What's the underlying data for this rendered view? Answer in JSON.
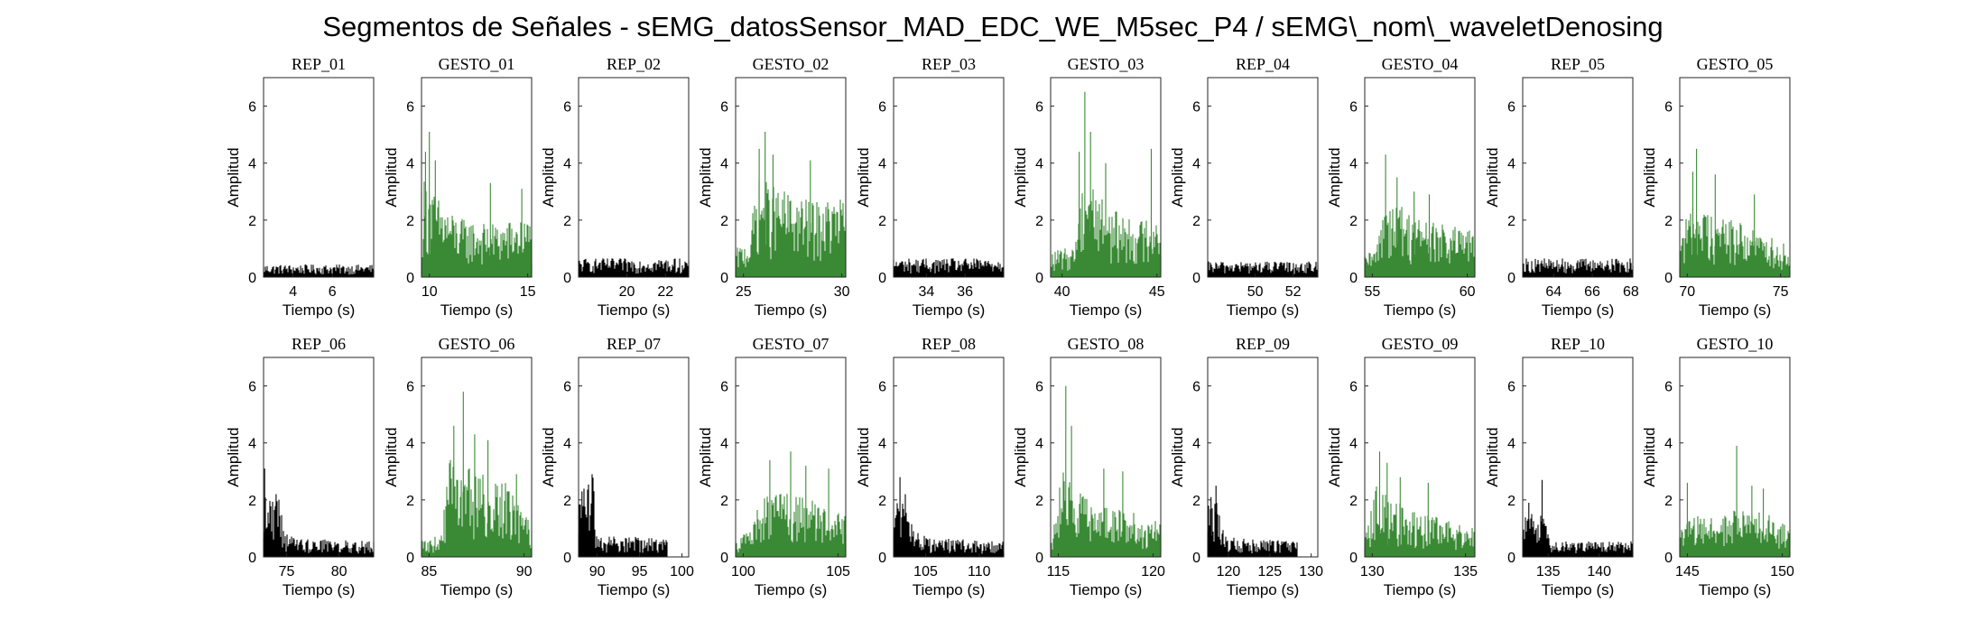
{
  "figure": {
    "title": "Segmentos de Señales - sEMG_datosSensor_MAD_EDC_WE_M5sec_P4 / sEMG\\_nom\\_waveletDenosing"
  },
  "colors": {
    "rep": "#000000",
    "gesto": "#3a8a35",
    "axis": "#262626"
  },
  "chart_data": [
    {
      "type": "area",
      "title": "REP_01",
      "kind": "rep",
      "xlabel": "Tiempo (s)",
      "ylabel": "Amplitud",
      "xlim": [
        2.5,
        8.1
      ],
      "ylim": [
        0,
        7
      ],
      "xticks": [
        4,
        6
      ],
      "yticks": [
        0,
        2,
        4,
        6
      ],
      "x_range": [
        2.5,
        8.1
      ],
      "envelope_x": [
        2.5,
        8.1
      ],
      "envelope_y": [
        0.4,
        0.4
      ],
      "spikes": []
    },
    {
      "type": "area",
      "title": "GESTO_01",
      "kind": "gesto",
      "xlabel": "Tiempo (s)",
      "ylabel": "Amplitud",
      "xlim": [
        9.6,
        15.2
      ],
      "ylim": [
        0,
        7
      ],
      "xticks": [
        10,
        15
      ],
      "yticks": [
        0,
        2,
        4,
        6
      ],
      "x_range": [
        9.6,
        15.2
      ],
      "envelope_x": [
        9.6,
        10.5,
        11.5,
        13,
        15.2
      ],
      "envelope_y": [
        3.3,
        2.5,
        1.9,
        1.7,
        1.9
      ],
      "spikes": [
        [
          10,
          5.1
        ],
        [
          9.8,
          4.4
        ],
        [
          10.3,
          4.1
        ],
        [
          13.1,
          3.3
        ],
        [
          14.7,
          3.1
        ]
      ]
    },
    {
      "type": "area",
      "title": "REP_02",
      "kind": "rep",
      "xlabel": "Tiempo (s)",
      "ylabel": "Amplitud",
      "xlim": [
        17.5,
        23.2
      ],
      "ylim": [
        0,
        7
      ],
      "xticks": [
        20,
        22
      ],
      "yticks": [
        0,
        2,
        4,
        6
      ],
      "x_range": [
        17.5,
        23.2
      ],
      "envelope_x": [
        17.5,
        23.2
      ],
      "envelope_y": [
        0.6,
        0.6
      ],
      "spikes": []
    },
    {
      "type": "area",
      "title": "GESTO_02",
      "kind": "gesto",
      "xlabel": "Tiempo (s)",
      "ylabel": "Amplitud",
      "xlim": [
        24.6,
        30.2
      ],
      "ylim": [
        0,
        7
      ],
      "xticks": [
        25,
        30
      ],
      "yticks": [
        0,
        2,
        4,
        6
      ],
      "x_range": [
        24.6,
        30.2
      ],
      "envelope_x": [
        24.6,
        25.3,
        25.7,
        27,
        28.5,
        30.2
      ],
      "envelope_y": [
        0.9,
        1.2,
        3.2,
        2.8,
        2.4,
        2.6
      ],
      "spikes": [
        [
          26.1,
          5.1
        ],
        [
          25.8,
          4.5
        ],
        [
          26.5,
          4.3
        ],
        [
          28.4,
          4.1
        ]
      ]
    },
    {
      "type": "area",
      "title": "REP_03",
      "kind": "rep",
      "xlabel": "Tiempo (s)",
      "ylabel": "Amplitud",
      "xlim": [
        32.3,
        38.0
      ],
      "ylim": [
        0,
        7
      ],
      "xticks": [
        34,
        36
      ],
      "yticks": [
        0,
        2,
        4,
        6
      ],
      "x_range": [
        32.3,
        38.0
      ],
      "envelope_x": [
        32.3,
        38.0
      ],
      "envelope_y": [
        0.6,
        0.6
      ],
      "spikes": []
    },
    {
      "type": "area",
      "title": "GESTO_03",
      "kind": "gesto",
      "xlabel": "Tiempo (s)",
      "ylabel": "Amplitud",
      "xlim": [
        39.4,
        45.2
      ],
      "ylim": [
        0,
        7
      ],
      "xticks": [
        40,
        45
      ],
      "yticks": [
        0,
        2,
        4,
        6
      ],
      "x_range": [
        39.4,
        45.2
      ],
      "envelope_x": [
        39.4,
        40.6,
        41.2,
        42.5,
        44,
        45.2
      ],
      "envelope_y": [
        0.8,
        1.0,
        3.6,
        2.2,
        1.8,
        2.2
      ],
      "spikes": [
        [
          41.2,
          6.5
        ],
        [
          41.5,
          5.1
        ],
        [
          40.9,
          4.4
        ],
        [
          42.3,
          4.0
        ],
        [
          44.7,
          4.5
        ]
      ]
    },
    {
      "type": "area",
      "title": "REP_04",
      "kind": "rep",
      "xlabel": "Tiempo (s)",
      "ylabel": "Amplitud",
      "xlim": [
        47.5,
        53.3
      ],
      "ylim": [
        0,
        7
      ],
      "xticks": [
        50,
        52
      ],
      "yticks": [
        0,
        2,
        4,
        6
      ],
      "x_range": [
        47.5,
        53.3
      ],
      "envelope_x": [
        47.5,
        53.3
      ],
      "envelope_y": [
        0.5,
        0.5
      ],
      "spikes": []
    },
    {
      "type": "area",
      "title": "GESTO_04",
      "kind": "gesto",
      "xlabel": "Tiempo (s)",
      "ylabel": "Amplitud",
      "xlim": [
        54.6,
        60.4
      ],
      "ylim": [
        0,
        7
      ],
      "xticks": [
        55,
        60
      ],
      "yticks": [
        0,
        2,
        4,
        6
      ],
      "x_range": [
        54.6,
        60.4
      ],
      "envelope_x": [
        54.6,
        55.2,
        55.6,
        57,
        58.5,
        60.4
      ],
      "envelope_y": [
        0.7,
        0.9,
        2.8,
        2.1,
        1.7,
        1.5
      ],
      "spikes": [
        [
          55.7,
          4.3
        ],
        [
          56.3,
          3.5
        ],
        [
          57.2,
          3.0
        ],
        [
          58.0,
          2.9
        ]
      ]
    },
    {
      "type": "area",
      "title": "REP_05",
      "kind": "rep",
      "xlabel": "Tiempo (s)",
      "ylabel": "Amplitud",
      "xlim": [
        62.4,
        68.1
      ],
      "ylim": [
        0,
        7
      ],
      "xticks": [
        64,
        66,
        68
      ],
      "yticks": [
        0,
        2,
        4,
        6
      ],
      "x_range": [
        62.4,
        68.1
      ],
      "envelope_x": [
        62.4,
        68.1
      ],
      "envelope_y": [
        0.6,
        0.6
      ],
      "spikes": []
    },
    {
      "type": "area",
      "title": "GESTO_05",
      "kind": "gesto",
      "xlabel": "Tiempo (s)",
      "ylabel": "Amplitud",
      "xlim": [
        69.6,
        75.5
      ],
      "ylim": [
        0,
        7
      ],
      "xticks": [
        70,
        75
      ],
      "yticks": [
        0,
        2,
        4,
        6
      ],
      "x_range": [
        69.6,
        75.5
      ],
      "envelope_x": [
        69.6,
        70.3,
        71,
        73,
        75.5
      ],
      "envelope_y": [
        1.4,
        2.4,
        2.2,
        1.7,
        1.0
      ],
      "spikes": [
        [
          70.5,
          4.5
        ],
        [
          70.3,
          3.7
        ],
        [
          71.5,
          3.6
        ],
        [
          73.6,
          2.9
        ]
      ]
    },
    {
      "type": "area",
      "title": "REP_06",
      "kind": "rep",
      "xlabel": "Tiempo (s)",
      "ylabel": "Amplitud",
      "xlim": [
        72.8,
        83.3
      ],
      "ylim": [
        0,
        7
      ],
      "xticks": [
        75,
        80
      ],
      "yticks": [
        0,
        2,
        4,
        6
      ],
      "x_range": [
        72.8,
        83.3
      ],
      "envelope_x": [
        72.8,
        73.5,
        74.4,
        74.8,
        76,
        83.3
      ],
      "envelope_y": [
        2.0,
        2.0,
        2.1,
        0.8,
        0.6,
        0.5
      ],
      "spikes": [
        [
          72.9,
          3.1
        ],
        [
          74.0,
          2.2
        ]
      ]
    },
    {
      "type": "area",
      "title": "GESTO_06",
      "kind": "gesto",
      "xlabel": "Tiempo (s)",
      "ylabel": "Amplitud",
      "xlim": [
        84.6,
        90.4
      ],
      "ylim": [
        0,
        7
      ],
      "xticks": [
        85,
        90
      ],
      "yticks": [
        0,
        2,
        4,
        6
      ],
      "x_range": [
        84.6,
        90.4
      ],
      "envelope_x": [
        84.6,
        85.6,
        86.1,
        87.5,
        89,
        90.4
      ],
      "envelope_y": [
        0.5,
        0.7,
        3.2,
        2.7,
        2.4,
        1.0
      ],
      "spikes": [
        [
          86.8,
          5.8
        ],
        [
          86.3,
          4.6
        ],
        [
          87.4,
          4.3
        ],
        [
          88.1,
          4.1
        ],
        [
          89.6,
          2.9
        ]
      ]
    },
    {
      "type": "area",
      "title": "REP_07",
      "kind": "rep",
      "xlabel": "Tiempo (s)",
      "ylabel": "Amplitud",
      "xlim": [
        87.8,
        100.8
      ],
      "ylim": [
        0,
        7
      ],
      "xticks": [
        90,
        95,
        100
      ],
      "yticks": [
        0,
        2,
        4,
        6
      ],
      "x_range": [
        87.8,
        98.3
      ],
      "envelope_x": [
        87.8,
        88.8,
        89.6,
        89.8,
        91,
        98.3
      ],
      "envelope_y": [
        1.9,
        2.4,
        2.6,
        0.8,
        0.7,
        0.6
      ],
      "spikes": [
        [
          89.4,
          2.9
        ],
        [
          88.2,
          2.3
        ]
      ]
    },
    {
      "type": "area",
      "title": "GESTO_07",
      "kind": "gesto",
      "xlabel": "Tiempo (s)",
      "ylabel": "Amplitud",
      "xlim": [
        99.6,
        105.4
      ],
      "ylim": [
        0,
        7
      ],
      "xticks": [
        100,
        105
      ],
      "yticks": [
        0,
        2,
        4,
        6
      ],
      "x_range": [
        99.6,
        105.4
      ],
      "envelope_x": [
        99.6,
        100.4,
        101,
        102.5,
        104,
        105.4
      ],
      "envelope_y": [
        0.6,
        0.9,
        2.1,
        2.0,
        1.8,
        1.3
      ],
      "spikes": [
        [
          102.5,
          3.7
        ],
        [
          101.4,
          3.4
        ],
        [
          103.3,
          3.2
        ],
        [
          104.5,
          3.1
        ]
      ]
    },
    {
      "type": "area",
      "title": "REP_08",
      "kind": "rep",
      "xlabel": "Tiempo (s)",
      "ylabel": "Amplitud",
      "xlim": [
        102.0,
        112.3
      ],
      "ylim": [
        0,
        7
      ],
      "xticks": [
        105,
        110
      ],
      "yticks": [
        0,
        2,
        4,
        6
      ],
      "x_range": [
        102.0,
        112.3
      ],
      "envelope_x": [
        102.0,
        102.6,
        103.5,
        104.5,
        106,
        112.3
      ],
      "envelope_y": [
        1.6,
        2.1,
        1.3,
        0.7,
        0.6,
        0.5
      ],
      "spikes": [
        [
          102.6,
          2.8
        ],
        [
          103.1,
          2.2
        ]
      ]
    },
    {
      "type": "area",
      "title": "GESTO_08",
      "kind": "gesto",
      "xlabel": "Tiempo (s)",
      "ylabel": "Amplitud",
      "xlim": [
        114.6,
        120.4
      ],
      "ylim": [
        0,
        7
      ],
      "xticks": [
        115,
        120
      ],
      "yticks": [
        0,
        2,
        4,
        6
      ],
      "x_range": [
        114.6,
        120.4
      ],
      "envelope_x": [
        114.6,
        115.2,
        115.8,
        117.5,
        119,
        120.4
      ],
      "envelope_y": [
        1.0,
        2.8,
        2.2,
        1.6,
        1.4,
        1.1
      ],
      "spikes": [
        [
          115.4,
          6.0
        ],
        [
          115.7,
          4.6
        ],
        [
          117.4,
          3.1
        ],
        [
          118.4,
          3.0
        ]
      ]
    },
    {
      "type": "area",
      "title": "REP_09",
      "kind": "rep",
      "xlabel": "Tiempo (s)",
      "ylabel": "Amplitud",
      "xlim": [
        117.5,
        130.8
      ],
      "ylim": [
        0,
        7
      ],
      "xticks": [
        120,
        125,
        130
      ],
      "yticks": [
        0,
        2,
        4,
        6
      ],
      "x_range": [
        117.5,
        128.3
      ],
      "envelope_x": [
        117.5,
        118.3,
        119,
        119.6,
        121,
        128.3
      ],
      "envelope_y": [
        1.6,
        2.0,
        1.7,
        0.7,
        0.6,
        0.5
      ],
      "spikes": [
        [
          118.5,
          2.5
        ],
        [
          117.9,
          2.1
        ]
      ]
    },
    {
      "type": "area",
      "title": "GESTO_09",
      "kind": "gesto",
      "xlabel": "Tiempo (s)",
      "ylabel": "Amplitud",
      "xlim": [
        129.6,
        135.5
      ],
      "ylim": [
        0,
        7
      ],
      "xticks": [
        130,
        135
      ],
      "yticks": [
        0,
        2,
        4,
        6
      ],
      "x_range": [
        129.6,
        135.5
      ],
      "envelope_x": [
        129.6,
        130.2,
        130.7,
        132.5,
        134,
        135.5
      ],
      "envelope_y": [
        0.6,
        2.3,
        2.0,
        1.4,
        1.2,
        0.9
      ],
      "spikes": [
        [
          130.4,
          3.7
        ],
        [
          130.8,
          3.3
        ],
        [
          131.5,
          2.8
        ],
        [
          133.0,
          2.6
        ]
      ]
    },
    {
      "type": "area",
      "title": "REP_10",
      "kind": "rep",
      "xlabel": "Tiempo (s)",
      "ylabel": "Amplitud",
      "xlim": [
        132.5,
        143.3
      ],
      "ylim": [
        0,
        7
      ],
      "xticks": [
        135,
        140
      ],
      "yticks": [
        0,
        2,
        4,
        6
      ],
      "x_range": [
        132.5,
        143.3
      ],
      "envelope_x": [
        132.5,
        133.5,
        134.5,
        135.2,
        137,
        143.3
      ],
      "envelope_y": [
        1.2,
        1.5,
        1.3,
        0.6,
        0.5,
        0.5
      ],
      "spikes": [
        [
          134.4,
          2.7
        ],
        [
          133.1,
          1.9
        ]
      ]
    },
    {
      "type": "area",
      "title": "GESTO_10",
      "kind": "gesto",
      "xlabel": "Tiempo (s)",
      "ylabel": "Amplitud",
      "xlim": [
        144.6,
        150.4
      ],
      "ylim": [
        0,
        7
      ],
      "xticks": [
        145,
        150
      ],
      "yticks": [
        0,
        2,
        4,
        6
      ],
      "x_range": [
        144.6,
        150.4
      ],
      "envelope_x": [
        144.6,
        145.5,
        146.5,
        148,
        149.5,
        150.4
      ],
      "envelope_y": [
        1.1,
        1.3,
        1.3,
        1.6,
        1.3,
        0.9
      ],
      "spikes": [
        [
          147.6,
          3.9
        ],
        [
          145.0,
          2.6
        ],
        [
          148.4,
          2.5
        ],
        [
          149.0,
          2.4
        ]
      ]
    }
  ]
}
